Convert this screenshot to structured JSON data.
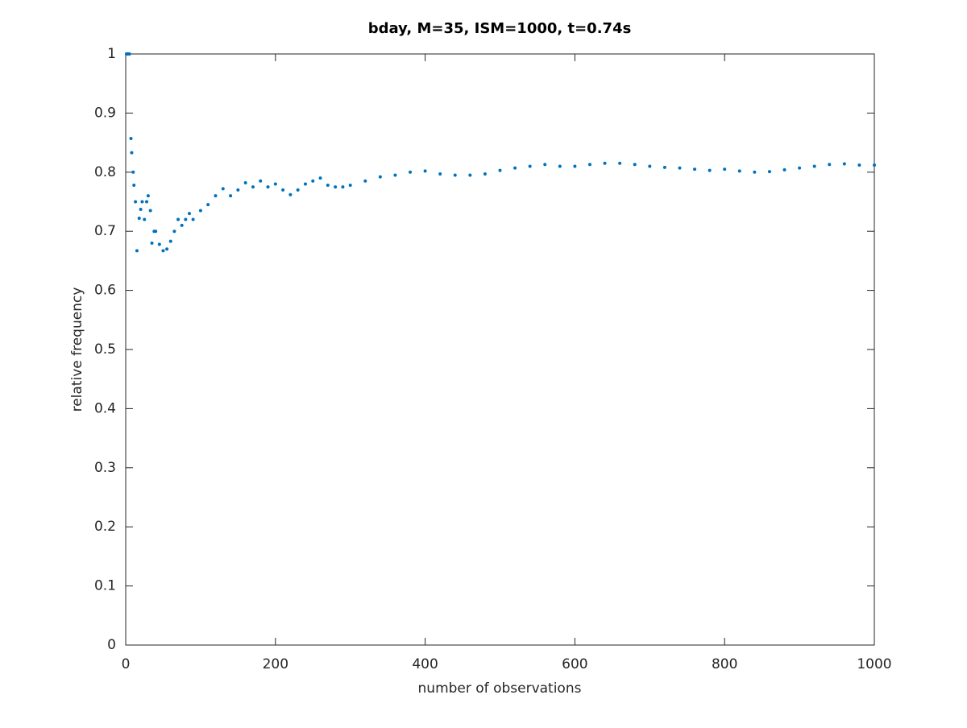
{
  "chart_data": {
    "type": "scatter",
    "title": "bday, M=35, ISM=1000, t=0.74s",
    "xlabel": "number of observations",
    "ylabel": "relative frequency",
    "color": "#0072bd",
    "x": [
      1,
      2,
      3,
      5,
      7,
      8,
      10,
      11,
      13,
      15,
      18,
      20,
      22,
      25,
      28,
      30,
      33,
      35,
      38,
      40,
      45,
      50,
      55,
      60,
      65,
      70,
      75,
      80,
      85,
      90,
      100,
      110,
      120,
      130,
      140,
      150,
      160,
      170,
      180,
      190,
      200,
      210,
      220,
      230,
      240,
      250,
      260,
      270,
      280,
      290,
      300,
      320,
      340,
      360,
      380,
      400,
      420,
      440,
      460,
      480,
      500,
      520,
      540,
      560,
      580,
      600,
      620,
      640,
      660,
      680,
      700,
      720,
      740,
      760,
      780,
      800,
      820,
      840,
      860,
      880,
      900,
      920,
      940,
      960,
      980,
      1000
    ],
    "values": [
      1,
      1,
      1,
      1,
      0.857,
      0.833,
      0.8,
      0.778,
      0.75,
      0.667,
      0.722,
      0.737,
      0.75,
      0.72,
      0.75,
      0.76,
      0.735,
      0.68,
      0.7,
      0.7,
      0.678,
      0.667,
      0.67,
      0.683,
      0.7,
      0.72,
      0.71,
      0.72,
      0.73,
      0.72,
      0.735,
      0.745,
      0.76,
      0.772,
      0.76,
      0.77,
      0.782,
      0.775,
      0.785,
      0.775,
      0.78,
      0.77,
      0.762,
      0.77,
      0.78,
      0.785,
      0.79,
      0.778,
      0.775,
      0.775,
      0.778,
      0.785,
      0.792,
      0.795,
      0.8,
      0.802,
      0.797,
      0.795,
      0.795,
      0.797,
      0.803,
      0.807,
      0.81,
      0.813,
      0.81,
      0.81,
      0.813,
      0.815,
      0.815,
      0.813,
      0.81,
      0.808,
      0.807,
      0.805,
      0.803,
      0.805,
      0.802,
      0.8,
      0.801,
      0.804,
      0.807,
      0.81,
      0.813,
      0.814,
      0.812,
      0.812
    ],
    "xlim": [
      0,
      1000
    ],
    "xticks": [
      0,
      200,
      400,
      600,
      800,
      1000
    ],
    "ylim": [
      0,
      1
    ],
    "yticks": [
      0,
      0.1,
      0.2,
      0.3,
      0.4,
      0.5,
      0.6,
      0.7,
      0.8,
      0.9,
      1
    ]
  }
}
